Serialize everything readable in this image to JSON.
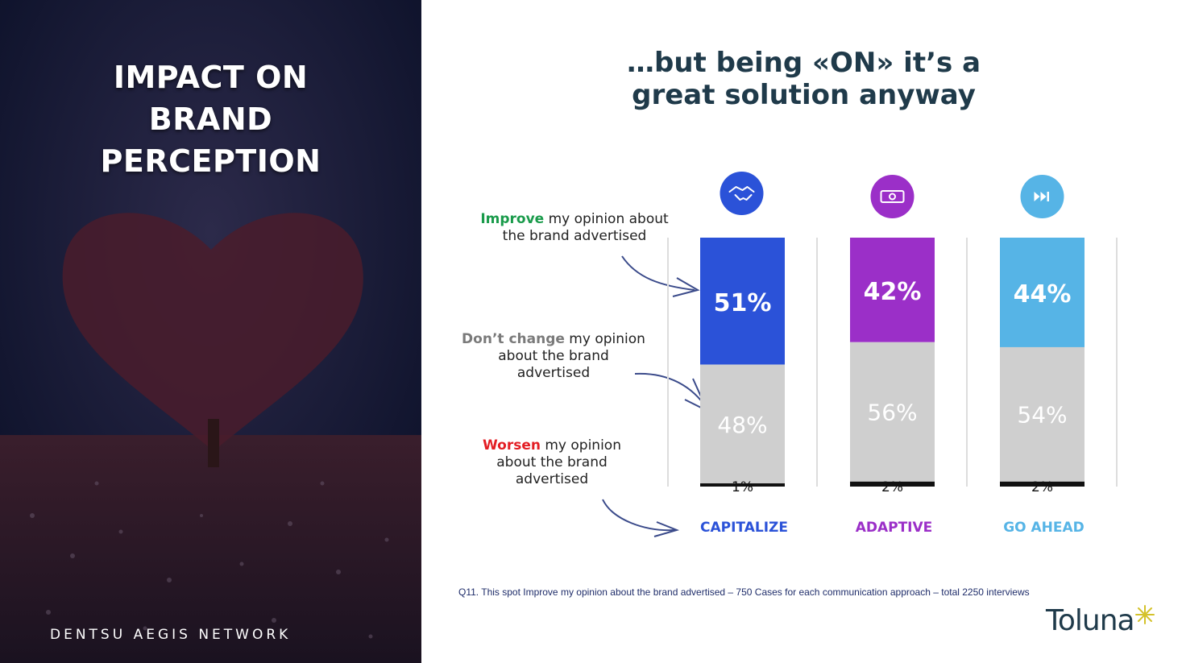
{
  "left": {
    "title_lines": [
      "IMPACT ON",
      "BRAND",
      "PERCEPTION"
    ],
    "network": "DENTSU AEGIS NETWORK"
  },
  "headline": {
    "line1": "…but being «ON» it’s a",
    "line2": "great solution anyway"
  },
  "legend": {
    "improve": {
      "kw": "Improve",
      "rest1": " my opinion about",
      "rest2": "the brand advertised",
      "color": "#1a9b4b"
    },
    "nochange": {
      "kw": "Don’t change",
      "rest1": " my opinion",
      "rest2": "about the brand",
      "rest3": "advertised",
      "color": "#7a7a7a"
    },
    "worsen": {
      "kw": "Worsen",
      "rest1": " my opinion",
      "rest2": "about the brand",
      "rest3": "advertised",
      "color": "#e31e24"
    }
  },
  "chart_data": {
    "type": "bar",
    "stacked": true,
    "categories": [
      "CAPITALIZE",
      "ADAPTIVE",
      "GO AHEAD"
    ],
    "category_colors": [
      "#2b52d8",
      "#9b2fc8",
      "#56b4e6"
    ],
    "category_icons": [
      "handshake-icon",
      "money-icon",
      "fast-forward-icon"
    ],
    "series": [
      {
        "name": "Improve",
        "values": [
          51,
          42,
          44
        ]
      },
      {
        "name": "Don’t change",
        "values": [
          48,
          56,
          54
        ],
        "color": "#cfcfcf"
      },
      {
        "name": "Worsen",
        "values": [
          1,
          2,
          2
        ],
        "color": "#111111"
      }
    ],
    "value_labels": {
      "improve": [
        "51%",
        "42%",
        "44%"
      ],
      "nochange": [
        "48%",
        "56%",
        "54%"
      ],
      "worsen": [
        "1%",
        "2%",
        "2%"
      ]
    }
  },
  "footnote": "Q11. This spot Improve  my opinion about the brand advertised – 750 Cases for each communication approach – total 2250 interviews",
  "logo": "Toluna"
}
